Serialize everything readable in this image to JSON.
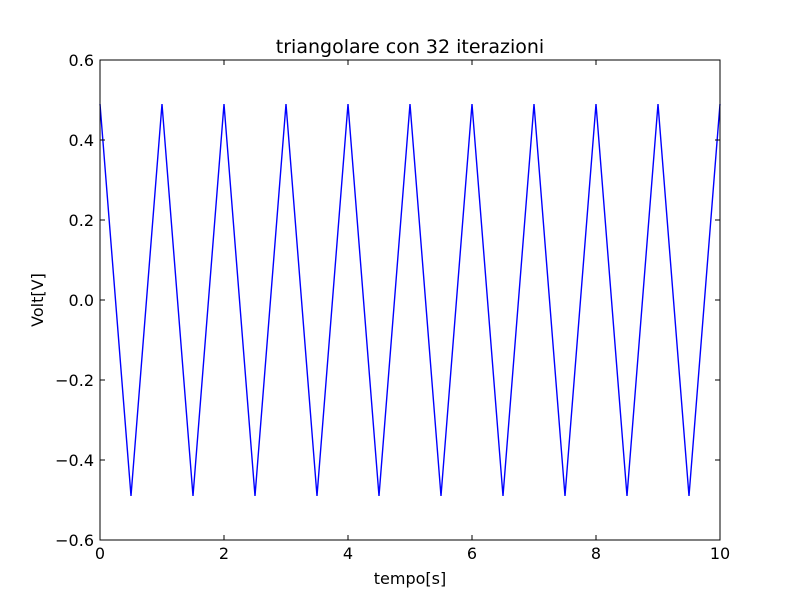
{
  "chart_data": {
    "type": "line",
    "title": "triangolare con 32 iterazioni",
    "xlabel": "tempo[s]",
    "ylabel": "Volt[V]",
    "xlim": [
      0,
      10
    ],
    "ylim": [
      -0.6,
      0.6
    ],
    "xticks": [
      0,
      2,
      4,
      6,
      8,
      10
    ],
    "xtick_labels": [
      "0",
      "2",
      "4",
      "6",
      "8",
      "10"
    ],
    "yticks": [
      -0.6,
      -0.4,
      -0.2,
      0.0,
      0.2,
      0.4,
      0.6
    ],
    "ytick_labels": [
      "−0.6",
      "−0.4",
      "−0.2",
      "0.0",
      "0.2",
      "0.4",
      "0.6"
    ],
    "grid": false,
    "series": [
      {
        "color": "#0000ff",
        "x": [
          0,
          0.5,
          1,
          1.5,
          2,
          2.5,
          3,
          3.5,
          4,
          4.5,
          5,
          5.5,
          6,
          6.5,
          7,
          7.5,
          8,
          8.5,
          9,
          9.5,
          10
        ],
        "y": [
          0.49,
          -0.49,
          0.49,
          -0.49,
          0.49,
          -0.49,
          0.49,
          -0.49,
          0.49,
          -0.49,
          0.49,
          -0.49,
          0.49,
          -0.49,
          0.49,
          -0.49,
          0.49,
          -0.49,
          0.49,
          -0.49,
          0.49
        ]
      }
    ]
  }
}
